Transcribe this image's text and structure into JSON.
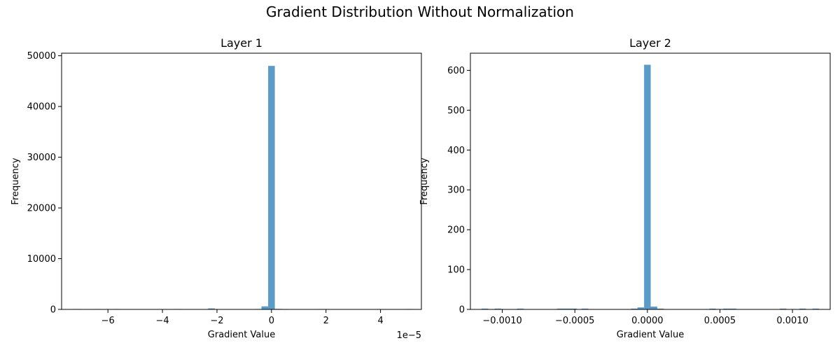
{
  "figure": {
    "suptitle": "Gradient Distribution Without Normalization"
  },
  "chart_data": [
    {
      "type": "histogram",
      "title": "Layer 1",
      "xlabel": "Gradient Value",
      "ylabel": "Frequency",
      "x_offset_label": "1e−5",
      "xlim": [
        -7.7,
        5.5
      ],
      "ylim": [
        0,
        50500
      ],
      "xticks": [
        -6,
        -4,
        -2,
        0,
        2,
        4
      ],
      "xtick_labels": [
        "−6",
        "−4",
        "−2",
        "0",
        "2",
        "4"
      ],
      "yticks": [
        0,
        10000,
        20000,
        30000,
        40000,
        50000
      ],
      "ytick_labels": [
        "0",
        "10000",
        "20000",
        "30000",
        "40000",
        "50000"
      ],
      "bar_color": "#5b9bc8",
      "bin_width": 0.245,
      "bins": [
        {
          "x": -7.12,
          "count": 80
        },
        {
          "x": -6.4,
          "count": 80
        },
        {
          "x": -5.67,
          "count": 80
        },
        {
          "x": -3.43,
          "count": 80
        },
        {
          "x": -2.2,
          "count": 200
        },
        {
          "x": -0.49,
          "count": 80
        },
        {
          "x": -0.245,
          "count": 600
        },
        {
          "x": 0.0,
          "count": 48000
        },
        {
          "x": 0.245,
          "count": 100
        },
        {
          "x": 0.49,
          "count": 60
        },
        {
          "x": 1.84,
          "count": 80
        },
        {
          "x": 5.03,
          "count": 80
        }
      ]
    },
    {
      "type": "histogram",
      "title": "Layer 2",
      "xlabel": "Gradient Value",
      "ylabel": "Frequency",
      "xlim": [
        -0.00122,
        0.00126
      ],
      "ylim": [
        0,
        643
      ],
      "xticks": [
        -0.001,
        -0.0005,
        0.0,
        0.0005,
        0.001
      ],
      "xtick_labels": [
        "−0.0010",
        "−0.0005",
        "0.0000",
        "0.0005",
        "0.0010"
      ],
      "yticks": [
        0,
        100,
        200,
        300,
        400,
        500,
        600
      ],
      "ytick_labels": [
        "0",
        "100",
        "200",
        "300",
        "400",
        "500",
        "600"
      ],
      "bar_color": "#5b9bc8",
      "bin_width": 4.55e-05,
      "bins": [
        {
          "x": -0.00112,
          "count": 2
        },
        {
          "x": -0.00103,
          "count": 2
        },
        {
          "x": -0.000875,
          "count": 2
        },
        {
          "x": -0.0006,
          "count": 2
        },
        {
          "x": -0.000555,
          "count": 2
        },
        {
          "x": -0.00051,
          "count": 2
        },
        {
          "x": -0.00043,
          "count": 2
        },
        {
          "x": -9e-05,
          "count": 2
        },
        {
          "x": -4.5e-05,
          "count": 5
        },
        {
          "x": 0.0,
          "count": 614
        },
        {
          "x": 4.5e-05,
          "count": 7
        },
        {
          "x": 9e-05,
          "count": 2
        },
        {
          "x": 0.00045,
          "count": 2
        },
        {
          "x": 0.000545,
          "count": 2
        },
        {
          "x": 0.00059,
          "count": 2
        },
        {
          "x": 0.000935,
          "count": 2
        },
        {
          "x": 0.00107,
          "count": 2
        },
        {
          "x": 0.00116,
          "count": 2
        }
      ]
    }
  ]
}
